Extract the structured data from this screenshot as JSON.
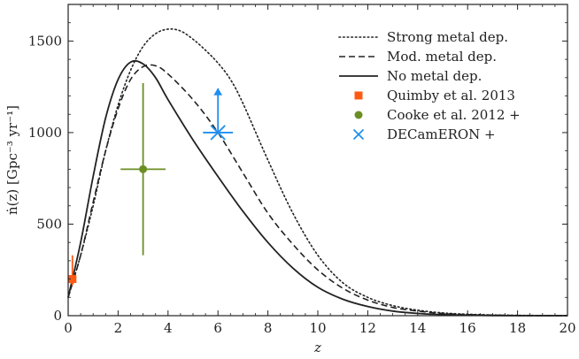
{
  "chart_data": {
    "type": "line",
    "title": "",
    "xlabel": "z",
    "ylabel": "ṅ(z) [Gpc⁻³ yr⁻¹]",
    "xlim": [
      0,
      20
    ],
    "ylim": [
      0,
      1700
    ],
    "xticks": [
      0,
      2,
      4,
      6,
      8,
      10,
      12,
      14,
      16,
      18,
      20
    ],
    "xtick_labels": [
      "0",
      "2",
      "4",
      "6",
      "8",
      "10",
      "12",
      "14",
      "16",
      "18",
      "20"
    ],
    "yticks": [
      0,
      500,
      1000,
      1500
    ],
    "ytick_labels": [
      "0",
      "500",
      "1000",
      "1500"
    ],
    "grid": false,
    "legend_position": "top-right",
    "series": [
      {
        "name": "Strong metal dep.",
        "style": "dotted",
        "color": "#222222",
        "x": [
          0,
          0.5,
          1,
          1.5,
          2,
          2.5,
          3,
          3.5,
          4,
          4.5,
          5,
          5.5,
          6,
          6.5,
          7,
          8,
          9,
          10,
          11,
          12,
          13,
          14,
          15,
          16,
          17,
          18,
          19,
          20
        ],
        "y": [
          100,
          330,
          600,
          900,
          1150,
          1340,
          1470,
          1540,
          1565,
          1555,
          1510,
          1450,
          1380,
          1290,
          1160,
          850,
          560,
          330,
          180,
          100,
          55,
          30,
          15,
          8,
          4,
          2,
          1,
          0
        ]
      },
      {
        "name": "Mod. metal dep.",
        "style": "dashed",
        "color": "#222222",
        "x": [
          0,
          0.5,
          1,
          1.5,
          2,
          2.5,
          3,
          3.5,
          4,
          5,
          6,
          7,
          8,
          9,
          10,
          11,
          12,
          13,
          14,
          15,
          16,
          17,
          18,
          19,
          20
        ],
        "y": [
          100,
          330,
          620,
          900,
          1130,
          1290,
          1360,
          1365,
          1320,
          1180,
          1000,
          780,
          560,
          390,
          250,
          150,
          85,
          45,
          25,
          12,
          6,
          3,
          1,
          0,
          0
        ]
      },
      {
        "name": "No metal dep.",
        "style": "solid",
        "color": "#222222",
        "x": [
          0,
          0.5,
          1,
          1.5,
          2,
          2.5,
          3,
          3.5,
          4,
          5,
          6,
          7,
          8,
          9,
          10,
          11,
          12,
          13,
          14,
          15,
          16,
          17,
          18,
          19,
          20
        ],
        "y": [
          100,
          400,
          760,
          1080,
          1290,
          1385,
          1375,
          1300,
          1180,
          960,
          760,
          570,
          400,
          260,
          155,
          90,
          50,
          25,
          12,
          6,
          3,
          1,
          0,
          0,
          0
        ]
      }
    ],
    "points": [
      {
        "name": "Quimby et al. 2013",
        "marker": "square",
        "color": "#ff5a14",
        "x": 0.17,
        "y": 200,
        "yerr_up": 130,
        "yerr_down": 0,
        "xerr": 0.05,
        "arrow": "down"
      },
      {
        "name": "Cooke et al. 2012 +",
        "marker": "circle",
        "color": "#6b8e23",
        "x": 3.0,
        "y": 800,
        "yerr_up": 470,
        "yerr_down": 470,
        "xerr": 0.9,
        "arrow": "none"
      },
      {
        "name": "DECamERON +",
        "marker": "x",
        "color": "#1f8ff0",
        "x": 6.0,
        "y": 1000,
        "yerr_up": 0,
        "yerr_down": 0,
        "xerr": 0.6,
        "arrow": "up",
        "arrow_to": 1240
      }
    ],
    "legend": [
      {
        "label": "Strong metal dep.",
        "kind": "line",
        "style": "dotted",
        "color": "#222222"
      },
      {
        "label": "Mod. metal dep.",
        "kind": "line",
        "style": "dashed",
        "color": "#222222"
      },
      {
        "label": "No metal dep.",
        "kind": "line",
        "style": "solid",
        "color": "#222222"
      },
      {
        "label": "Quimby et al. 2013",
        "kind": "marker",
        "marker": "square",
        "color": "#ff5a14"
      },
      {
        "label": "Cooke et al. 2012 +",
        "kind": "marker",
        "marker": "circle",
        "color": "#6b8e23"
      },
      {
        "label": "DECamERON +",
        "kind": "marker",
        "marker": "x",
        "color": "#1f8ff0"
      }
    ]
  }
}
